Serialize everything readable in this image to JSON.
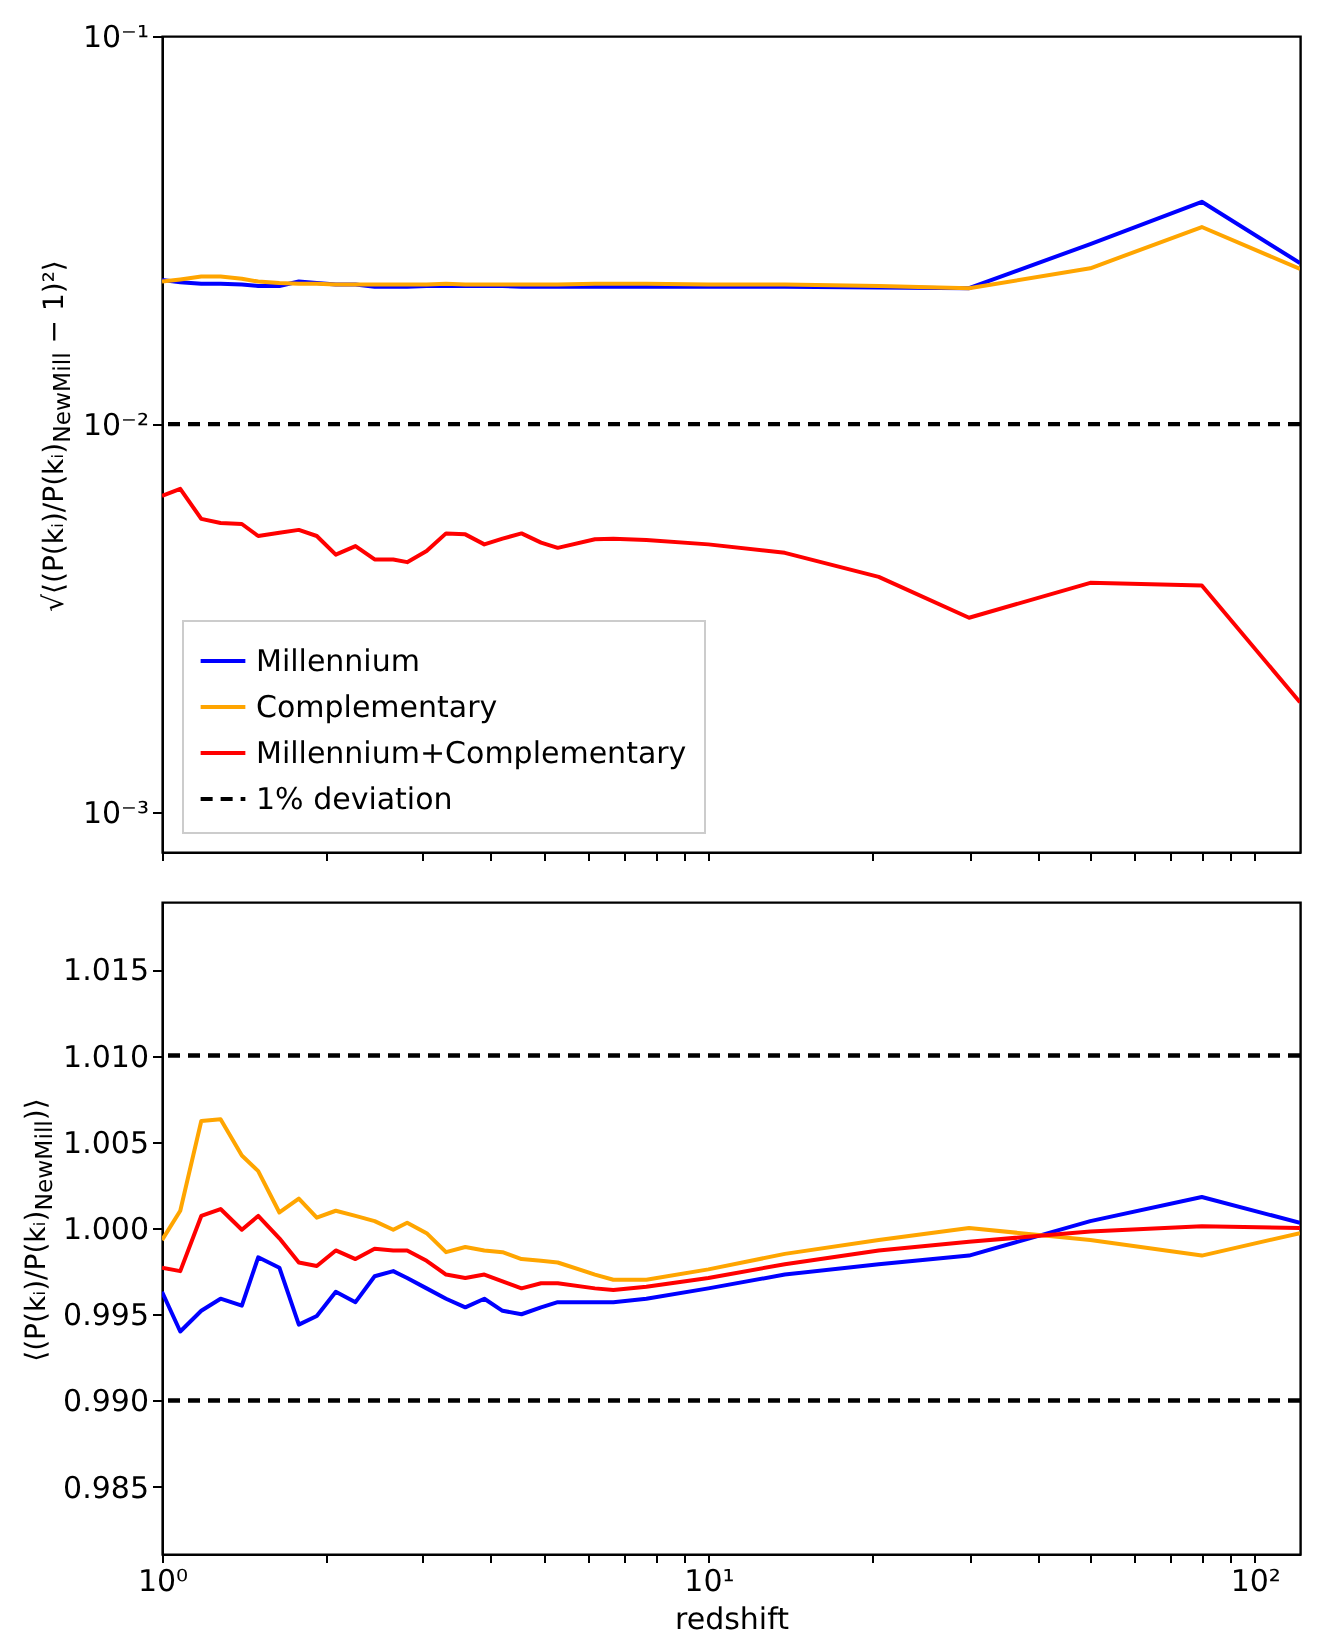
{
  "chart_data": [
    {
      "type": "line",
      "ylabel": "√⟨(P(kᵢ)/P(kᵢ)$_{NewMill}$ − 1)²⟩",
      "log": "xy",
      "grid": false,
      "legend": "bottom left",
      "tick_labels": "y",
      "x": [
        1.0,
        1.08,
        1.18,
        1.28,
        1.4,
        1.5,
        1.64,
        1.78,
        1.92,
        2.08,
        2.26,
        2.45,
        2.65,
        2.81,
        3.05,
        3.31,
        3.59,
        3.89,
        4.2,
        4.55,
        4.94,
        5.3,
        6.2,
        6.7,
        7.7,
        10,
        13.8,
        20.5,
        30,
        50,
        80,
        121
      ],
      "xlim": [
        1,
        121
      ],
      "xticks": [
        {
          "value": 1,
          "label": null
        },
        {
          "value": 2,
          "label": null
        },
        {
          "value": 3,
          "label": null
        },
        {
          "value": 4,
          "label": null
        },
        {
          "value": 5,
          "label": null
        },
        {
          "value": 6,
          "label": null
        },
        {
          "value": 7,
          "label": null
        },
        {
          "value": 8,
          "label": null
        },
        {
          "value": 9,
          "label": null
        },
        {
          "value": 10,
          "label": null
        },
        {
          "value": 20,
          "label": null
        },
        {
          "value": 30,
          "label": null
        },
        {
          "value": 40,
          "label": null
        },
        {
          "value": 50,
          "label": null
        },
        {
          "value": 60,
          "label": null
        },
        {
          "value": 70,
          "label": null
        },
        {
          "value": 80,
          "label": null
        },
        {
          "value": 90,
          "label": null
        },
        {
          "value": 100,
          "label": null
        }
      ],
      "ylim": [
        0.00079,
        0.1
      ],
      "yticks": [
        {
          "value": 0.001,
          "label": "10⁻³"
        },
        {
          "value": 0.01,
          "label": "10⁻²"
        },
        {
          "value": 0.1,
          "label": "10⁻¹"
        }
      ],
      "series": [
        {
          "name": "Millennium",
          "color": "#0000ff",
          "values": [
            0.0235,
            0.0232,
            0.023,
            0.023,
            0.0229,
            0.0227,
            0.0227,
            0.0233,
            0.0231,
            0.0229,
            0.0229,
            0.0226,
            0.0226,
            0.0226,
            0.0227,
            0.0227,
            0.0227,
            0.0227,
            0.0227,
            0.0226,
            0.0226,
            0.0226,
            0.0226,
            0.0226,
            0.0226,
            0.0226,
            0.0226,
            0.0225,
            0.0224,
            0.0291,
            0.0374,
            0.026
          ]
        },
        {
          "name": "Complementary",
          "color": "#ffa500",
          "values": [
            0.0233,
            0.0236,
            0.024,
            0.024,
            0.0237,
            0.0233,
            0.0231,
            0.023,
            0.023,
            0.0229,
            0.0229,
            0.0229,
            0.0229,
            0.0229,
            0.0229,
            0.023,
            0.0229,
            0.0229,
            0.0229,
            0.0229,
            0.0229,
            0.0229,
            0.023,
            0.023,
            0.023,
            0.0229,
            0.0229,
            0.0227,
            0.0224,
            0.0252,
            0.0322,
            0.0251
          ]
        },
        {
          "name": "Millennium+Complementary",
          "color": "#ff0000",
          "values": [
            0.00653,
            0.00681,
            0.0057,
            0.00556,
            0.00553,
            0.00515,
            0.00525,
            0.00534,
            0.00515,
            0.00461,
            0.00485,
            0.00448,
            0.00448,
            0.00441,
            0.00471,
            0.00523,
            0.0052,
            0.0049,
            0.00507,
            0.00523,
            0.00495,
            0.0048,
            0.00505,
            0.00507,
            0.00503,
            0.0049,
            0.00466,
            0.00404,
            0.00317,
            0.0039,
            0.00384,
            0.00192
          ]
        }
      ],
      "ref_lines": [
        {
          "axis": "y",
          "value": 0.01,
          "label": "1% deviation",
          "color": "#000000",
          "line_style": "dashed"
        }
      ]
    },
    {
      "type": "line",
      "xlabel": "redshift",
      "ylabel": "⟨(P(kᵢ)/P(kᵢ)$_{NewMill}$)⟩",
      "log": "x",
      "grid": false,
      "x": [
        1.0,
        1.08,
        1.18,
        1.28,
        1.4,
        1.5,
        1.64,
        1.78,
        1.92,
        2.08,
        2.26,
        2.45,
        2.65,
        2.81,
        3.05,
        3.31,
        3.59,
        3.89,
        4.2,
        4.55,
        4.94,
        5.3,
        6.2,
        6.7,
        7.7,
        10,
        13.8,
        20.5,
        30,
        50,
        80,
        121
      ],
      "xlim": [
        1,
        121
      ],
      "xticks": [
        {
          "value": 1,
          "label": "10⁰"
        },
        {
          "value": 2,
          "label": null
        },
        {
          "value": 3,
          "label": null
        },
        {
          "value": 4,
          "label": null
        },
        {
          "value": 5,
          "label": null
        },
        {
          "value": 6,
          "label": null
        },
        {
          "value": 7,
          "label": null
        },
        {
          "value": 8,
          "label": null
        },
        {
          "value": 9,
          "label": null
        },
        {
          "value": 10,
          "label": "10¹"
        },
        {
          "value": 20,
          "label": null
        },
        {
          "value": 30,
          "label": null
        },
        {
          "value": 40,
          "label": null
        },
        {
          "value": 50,
          "label": null
        },
        {
          "value": 60,
          "label": null
        },
        {
          "value": 70,
          "label": null
        },
        {
          "value": 80,
          "label": null
        },
        {
          "value": 90,
          "label": null
        },
        {
          "value": 100,
          "label": "10²"
        }
      ],
      "ylim": [
        0.9811,
        1.0189
      ],
      "yticks": [
        {
          "value": 0.985,
          "label": "0.985"
        },
        {
          "value": 0.99,
          "label": "0.990"
        },
        {
          "value": 0.995,
          "label": "0.995"
        },
        {
          "value": 1.0,
          "label": "1.000"
        },
        {
          "value": 1.005,
          "label": "1.005"
        },
        {
          "value": 1.01,
          "label": "1.010"
        },
        {
          "value": 1.015,
          "label": "1.015"
        }
      ],
      "series": [
        {
          "color": "#0000ff",
          "values": [
            0.9963,
            0.994,
            0.9952,
            0.9959,
            0.9955,
            0.9983,
            0.9977,
            0.9944,
            0.9949,
            0.9963,
            0.9957,
            0.9972,
            0.9975,
            0.9971,
            0.9965,
            0.9959,
            0.9954,
            0.9959,
            0.9952,
            0.995,
            0.9954,
            0.9957,
            0.9957,
            0.9957,
            0.9959,
            0.9965,
            0.9973,
            0.9979,
            0.9984,
            1.0004,
            1.0018,
            1.0003
          ]
        },
        {
          "color": "#ffa500",
          "values": [
            0.9993,
            1.001,
            1.0062,
            1.0063,
            1.0042,
            1.0033,
            1.0009,
            1.0017,
            1.0006,
            1.001,
            1.0007,
            1.0004,
            0.9999,
            1.0003,
            0.9997,
            0.9986,
            0.9989,
            0.9987,
            0.9986,
            0.9982,
            0.9981,
            0.998,
            0.9973,
            0.997,
            0.997,
            0.9976,
            0.9985,
            0.9993,
            1.0,
            0.9993,
            0.9984,
            0.9997
          ]
        },
        {
          "color": "#ff0000",
          "values": [
            0.9977,
            0.9975,
            1.0007,
            1.0011,
            0.9999,
            1.0007,
            0.9994,
            0.998,
            0.9978,
            0.9987,
            0.9982,
            0.9988,
            0.9987,
            0.9987,
            0.9981,
            0.9973,
            0.9971,
            0.9973,
            0.9969,
            0.9965,
            0.9968,
            0.9968,
            0.9965,
            0.9964,
            0.9966,
            0.9971,
            0.9979,
            0.9987,
            0.9992,
            0.9998,
            1.0001,
            1.0
          ]
        }
      ],
      "ref_lines": [
        {
          "axis": "y",
          "value": 1.01,
          "color": "#000000",
          "line_style": "dashed"
        },
        {
          "axis": "y",
          "value": 0.99,
          "color": "#000000",
          "line_style": "dashed"
        }
      ]
    }
  ]
}
